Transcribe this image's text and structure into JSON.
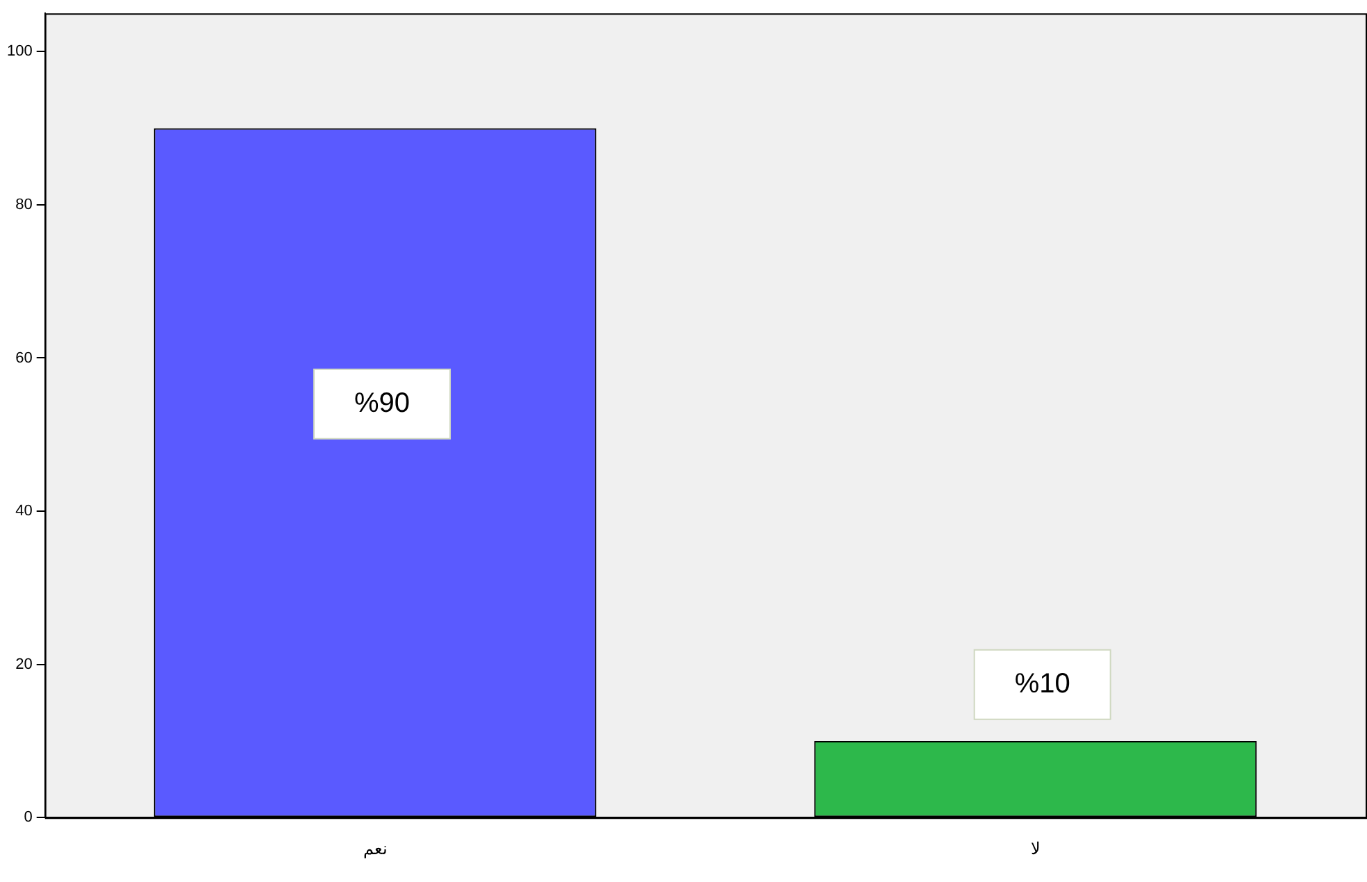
{
  "chart_data": {
    "type": "bar",
    "categories": [
      "نعم",
      "لا"
    ],
    "values": [
      90,
      10
    ],
    "colors": [
      "#5a5aff",
      "#2db84b"
    ],
    "value_labels": [
      "%90",
      "%10"
    ],
    "ylim": [
      0,
      105
    ],
    "yticks": [
      0,
      20,
      40,
      60,
      80,
      100
    ],
    "grid": false,
    "legend": false
  }
}
